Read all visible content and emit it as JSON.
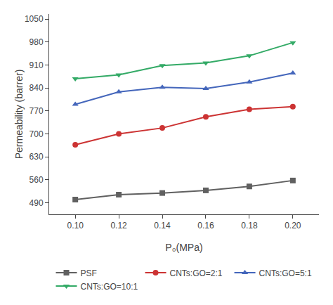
{
  "chart_data": {
    "type": "line",
    "x": [
      0.1,
      0.12,
      0.14,
      0.16,
      0.18,
      0.2
    ],
    "series": [
      {
        "name": "PSF",
        "color": "#606060",
        "marker": "square",
        "values": [
          500,
          515,
          520,
          528,
          540,
          558
        ]
      },
      {
        "name": "CNTs:GO=2:1",
        "color": "#cc3333",
        "marker": "circle",
        "values": [
          667,
          700,
          718,
          752,
          775,
          783
        ]
      },
      {
        "name": "CNTs:GO=5:1",
        "color": "#4466bb",
        "marker": "triangle-up",
        "values": [
          790,
          828,
          842,
          838,
          858,
          885
        ]
      },
      {
        "name": "CNTs:GO=10:1",
        "color": "#33aa66",
        "marker": "triangle-down",
        "values": [
          868,
          880,
          908,
          916,
          938,
          978
        ]
      }
    ],
    "xlabel": "P₀(MPa)",
    "ylabel": "Permeability (barrer)",
    "xlim": [
      0.088,
      0.212
    ],
    "ylim": [
      455,
      1065
    ],
    "xticks": [
      {
        "value": 0.1,
        "label": "0.10"
      },
      {
        "value": 0.12,
        "label": "0.12"
      },
      {
        "value": 0.14,
        "label": "0.14"
      },
      {
        "value": 0.16,
        "label": "0.16"
      },
      {
        "value": 0.18,
        "label": "0.18"
      },
      {
        "value": 0.2,
        "label": "0.20"
      }
    ],
    "yticks": [
      490,
      560,
      630,
      700,
      770,
      840,
      910,
      980,
      1050
    ],
    "grid": false,
    "legend": "bottom"
  }
}
